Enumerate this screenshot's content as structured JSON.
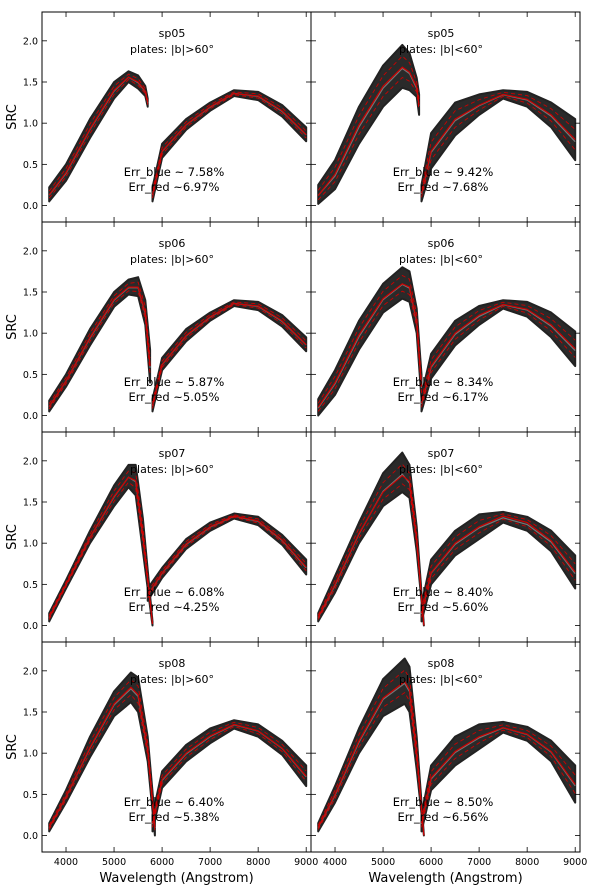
{
  "chart_data": {
    "type": "line",
    "layout": "4 rows x 2 columns, shared axes",
    "xlabel": "Wavelength (Angstrom)",
    "ylabel": "SRC",
    "xlim": [
      3500,
      9100
    ],
    "ylim": [
      -0.2,
      2.35
    ],
    "xticks": [
      4000,
      5000,
      6000,
      7000,
      8000,
      9000
    ],
    "yticks": [
      0.0,
      0.5,
      1.0,
      1.5,
      2.0
    ],
    "ytick_labels": [
      "0.0",
      "0.5",
      "1.0",
      "1.5",
      "2.0"
    ],
    "grid": false,
    "colors": {
      "curves": "#222222",
      "mean": "#cc0000",
      "frame": "#000000"
    },
    "panels": [
      {
        "spectrograph": "sp05",
        "plates": "plates: |b|>60°",
        "err_blue": "Err_blue ~ 7.58%",
        "err_red": "Err_red ~6.97%",
        "blue_band": {
          "x": [
            3650,
            4000,
            4500,
            5000,
            5300,
            5500,
            5650,
            5700
          ],
          "upper": [
            0.22,
            0.5,
            1.05,
            1.5,
            1.63,
            1.58,
            1.45,
            1.3
          ],
          "lower": [
            0.05,
            0.3,
            0.82,
            1.3,
            1.5,
            1.42,
            1.33,
            1.2
          ]
        },
        "blue_mean": [
          0.13,
          0.4,
          0.93,
          1.4,
          1.56,
          1.5,
          1.39,
          1.25
        ],
        "red_band": {
          "x": [
            5800,
            6000,
            6500,
            7000,
            7500,
            8000,
            8500,
            9000
          ],
          "upper": [
            0.22,
            0.75,
            1.05,
            1.25,
            1.4,
            1.38,
            1.22,
            0.95
          ],
          "lower": [
            0.05,
            0.58,
            0.92,
            1.15,
            1.33,
            1.28,
            1.08,
            0.78
          ]
        },
        "red_mean": [
          0.13,
          0.66,
          0.98,
          1.2,
          1.36,
          1.33,
          1.15,
          0.86
        ]
      },
      {
        "spectrograph": "sp05",
        "plates": "plates: |b|<60°",
        "err_blue": "Err_blue ~ 9.42%",
        "err_red": "Err_red ~7.68%",
        "blue_band": {
          "x": [
            3650,
            4000,
            4500,
            5000,
            5400,
            5550,
            5700,
            5750
          ],
          "upper": [
            0.25,
            0.55,
            1.2,
            1.7,
            1.95,
            1.85,
            1.55,
            1.35
          ],
          "lower": [
            0.02,
            0.2,
            0.75,
            1.2,
            1.43,
            1.4,
            1.32,
            1.1
          ]
        },
        "blue_mean": [
          0.12,
          0.38,
          0.98,
          1.45,
          1.68,
          1.62,
          1.44,
          1.22
        ],
        "red_band": {
          "x": [
            5800,
            6000,
            6500,
            7000,
            7500,
            8000,
            8500,
            9000
          ],
          "upper": [
            0.25,
            0.88,
            1.25,
            1.35,
            1.4,
            1.38,
            1.25,
            1.05
          ],
          "lower": [
            0.05,
            0.45,
            0.85,
            1.1,
            1.3,
            1.2,
            0.95,
            0.55
          ]
        },
        "red_mean": [
          0.15,
          0.66,
          1.05,
          1.22,
          1.35,
          1.29,
          1.1,
          0.8
        ]
      },
      {
        "spectrograph": "sp06",
        "plates": "plates: |b|>60°",
        "err_blue": "Err_blue ~ 5.87%",
        "err_red": "Err_red ~5.05%",
        "blue_band": {
          "x": [
            3650,
            4000,
            4500,
            5000,
            5300,
            5500,
            5650,
            5750
          ],
          "upper": [
            0.18,
            0.5,
            1.05,
            1.5,
            1.65,
            1.68,
            1.4,
            0.8
          ],
          "lower": [
            0.05,
            0.35,
            0.85,
            1.32,
            1.47,
            1.45,
            1.1,
            0.4
          ]
        },
        "blue_mean": [
          0.11,
          0.42,
          0.95,
          1.41,
          1.56,
          1.56,
          1.25,
          0.6
        ],
        "red_band": {
          "x": [
            5800,
            6000,
            6500,
            7000,
            7500,
            8000,
            8500,
            9000
          ],
          "upper": [
            0.2,
            0.7,
            1.05,
            1.25,
            1.4,
            1.38,
            1.22,
            0.95
          ],
          "lower": [
            0.05,
            0.55,
            0.9,
            1.15,
            1.33,
            1.28,
            1.08,
            0.78
          ]
        },
        "red_mean": [
          0.12,
          0.62,
          0.97,
          1.2,
          1.36,
          1.33,
          1.15,
          0.86
        ]
      },
      {
        "spectrograph": "sp06",
        "plates": "plates: |b|<60°",
        "err_blue": "Err_blue ~ 8.34%",
        "err_red": "Err_red ~6.17%",
        "blue_band": {
          "x": [
            3650,
            4000,
            4500,
            5000,
            5400,
            5550,
            5700,
            5800
          ],
          "upper": [
            0.2,
            0.55,
            1.15,
            1.6,
            1.8,
            1.75,
            1.3,
            0.5
          ],
          "lower": [
            0.0,
            0.25,
            0.8,
            1.25,
            1.42,
            1.38,
            1.0,
            0.2
          ]
        },
        "blue_mean": [
          0.1,
          0.4,
          0.98,
          1.42,
          1.6,
          1.56,
          1.15,
          0.35
        ],
        "red_band": {
          "x": [
            5800,
            6000,
            6500,
            7000,
            7500,
            8000,
            8500,
            9000
          ],
          "upper": [
            0.25,
            0.75,
            1.15,
            1.33,
            1.4,
            1.38,
            1.25,
            1.02
          ],
          "lower": [
            0.05,
            0.45,
            0.85,
            1.1,
            1.3,
            1.2,
            0.95,
            0.6
          ]
        },
        "red_mean": [
          0.15,
          0.6,
          1.0,
          1.22,
          1.35,
          1.29,
          1.1,
          0.81
        ]
      },
      {
        "spectrograph": "sp07",
        "plates": "plates: |b|>60°",
        "err_blue": "Err_blue ~ 6.08%",
        "err_red": "Err_red ~4.25%",
        "blue_band": {
          "x": [
            3650,
            4000,
            4500,
            5000,
            5300,
            5450,
            5600,
            5800
          ],
          "upper": [
            0.15,
            0.55,
            1.15,
            1.7,
            1.95,
            1.95,
            1.3,
            0.05
          ],
          "lower": [
            0.05,
            0.45,
            1.0,
            1.45,
            1.68,
            1.58,
            0.9,
            0.0
          ]
        },
        "blue_mean": [
          0.1,
          0.5,
          1.07,
          1.57,
          1.8,
          1.76,
          1.1,
          0.02
        ],
        "red_band": {
          "x": [
            5700,
            6000,
            6500,
            7000,
            7500,
            8000,
            8500,
            9000
          ],
          "upper": [
            0.45,
            0.7,
            1.05,
            1.25,
            1.36,
            1.32,
            1.1,
            0.8
          ],
          "lower": [
            0.3,
            0.58,
            0.93,
            1.15,
            1.3,
            1.22,
            0.98,
            0.62
          ]
        },
        "red_mean": [
          0.37,
          0.64,
          0.99,
          1.2,
          1.33,
          1.27,
          1.04,
          0.71
        ]
      },
      {
        "spectrograph": "sp07",
        "plates": "plates: |b|<60°",
        "err_blue": "Err_blue ~ 8.40%",
        "err_red": "Err_red ~5.60%",
        "blue_band": {
          "x": [
            3650,
            4000,
            4500,
            5000,
            5400,
            5550,
            5700,
            5850
          ],
          "upper": [
            0.15,
            0.6,
            1.25,
            1.85,
            2.1,
            1.95,
            1.2,
            0.0
          ],
          "lower": [
            0.05,
            0.4,
            1.0,
            1.45,
            1.62,
            1.55,
            0.9,
            0.0
          ]
        },
        "blue_mean": [
          0.1,
          0.5,
          1.12,
          1.62,
          1.82,
          1.75,
          1.05,
          0.0
        ],
        "red_band": {
          "x": [
            5800,
            6000,
            6500,
            7000,
            7500,
            8000,
            8500,
            9000
          ],
          "upper": [
            0.25,
            0.8,
            1.15,
            1.35,
            1.38,
            1.32,
            1.15,
            0.85
          ],
          "lower": [
            0.05,
            0.5,
            0.85,
            1.05,
            1.25,
            1.15,
            0.9,
            0.45
          ]
        },
        "red_mean": [
          0.15,
          0.64,
          1.0,
          1.2,
          1.33,
          1.25,
          1.03,
          0.65
        ]
      },
      {
        "spectrograph": "sp08",
        "plates": "plates: |b|>60°",
        "err_blue": "Err_blue ~ 6.40%",
        "err_red": "Err_red ~5.38%",
        "blue_band": {
          "x": [
            3650,
            4000,
            4500,
            5000,
            5350,
            5500,
            5700,
            5850
          ],
          "upper": [
            0.15,
            0.55,
            1.2,
            1.75,
            1.98,
            1.92,
            1.2,
            0.2
          ],
          "lower": [
            0.05,
            0.4,
            0.95,
            1.45,
            1.62,
            1.5,
            0.9,
            0.0
          ]
        },
        "blue_mean": [
          0.1,
          0.47,
          1.07,
          1.6,
          1.8,
          1.71,
          1.05,
          0.1
        ],
        "red_band": {
          "x": [
            5800,
            6000,
            6500,
            7000,
            7500,
            8000,
            8500,
            9000
          ],
          "upper": [
            0.25,
            0.78,
            1.1,
            1.3,
            1.4,
            1.35,
            1.15,
            0.85
          ],
          "lower": [
            0.05,
            0.58,
            0.9,
            1.12,
            1.3,
            1.2,
            0.98,
            0.6
          ]
        },
        "red_mean": [
          0.15,
          0.68,
          1.0,
          1.21,
          1.35,
          1.27,
          1.06,
          0.72
        ]
      },
      {
        "spectrograph": "sp08",
        "plates": "plates: |b|<60°",
        "err_blue": "Err_blue ~ 8.50%",
        "err_red": "Err_red ~6.56%",
        "blue_band": {
          "x": [
            3650,
            4000,
            4500,
            5000,
            5450,
            5550,
            5700,
            5850
          ],
          "upper": [
            0.15,
            0.6,
            1.3,
            1.9,
            2.15,
            2.05,
            1.2,
            0.0
          ],
          "lower": [
            0.05,
            0.4,
            1.0,
            1.45,
            1.6,
            1.5,
            0.8,
            0.0
          ]
        },
        "blue_mean": [
          0.1,
          0.5,
          1.15,
          1.67,
          1.87,
          1.77,
          1.0,
          0.0
        ],
        "red_band": {
          "x": [
            5800,
            6000,
            6500,
            7000,
            7500,
            8000,
            8500,
            9000
          ],
          "upper": [
            0.25,
            0.85,
            1.2,
            1.35,
            1.38,
            1.32,
            1.15,
            0.85
          ],
          "lower": [
            0.05,
            0.55,
            0.85,
            1.05,
            1.25,
            1.15,
            0.9,
            0.4
          ]
        },
        "red_mean": [
          0.15,
          0.7,
          1.02,
          1.2,
          1.31,
          1.23,
          1.02,
          0.62
        ]
      }
    ]
  }
}
